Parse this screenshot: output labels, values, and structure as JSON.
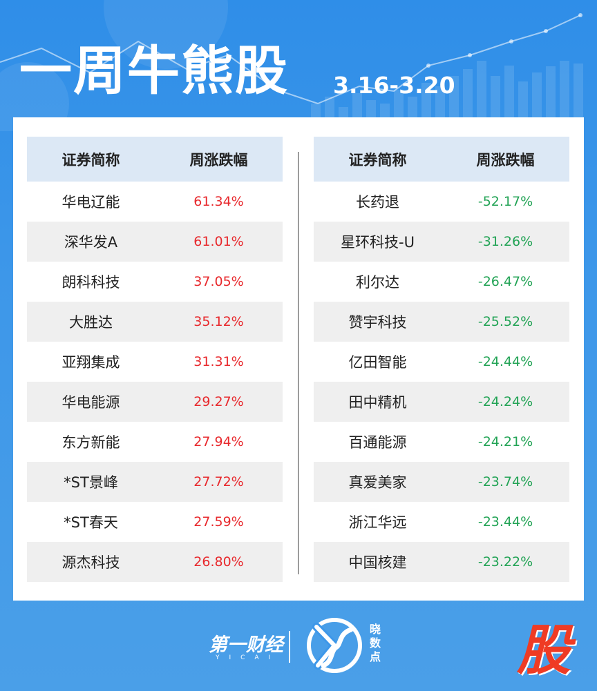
{
  "header": {
    "title": "一周牛熊股",
    "date_range": "3.16-3.20"
  },
  "gainers": {
    "col_name": "证券简称",
    "col_change": "周涨跌幅",
    "rows": [
      {
        "name": "华电辽能",
        "change": "61.34%"
      },
      {
        "name": "深华发A",
        "change": "61.01%"
      },
      {
        "name": "朗科科技",
        "change": "37.05%"
      },
      {
        "name": "大胜达",
        "change": "35.12%"
      },
      {
        "name": "亚翔集成",
        "change": "31.31%"
      },
      {
        "name": "华电能源",
        "change": "29.27%"
      },
      {
        "name": "东方新能",
        "change": "27.94%"
      },
      {
        "name": "*ST景峰",
        "change": "27.72%"
      },
      {
        "name": "*ST春天",
        "change": "27.59%"
      },
      {
        "name": "源杰科技",
        "change": "26.80%"
      }
    ]
  },
  "losers": {
    "col_name": "证券简称",
    "col_change": "周涨跌幅",
    "rows": [
      {
        "name": "长药退",
        "change": "-52.17%"
      },
      {
        "name": "星环科技-U",
        "change": "-31.26%"
      },
      {
        "name": "利尔达",
        "change": "-26.47%"
      },
      {
        "name": "赞宇科技",
        "change": "-25.52%"
      },
      {
        "name": "亿田智能",
        "change": "-24.44%"
      },
      {
        "name": "田中精机",
        "change": "-24.24%"
      },
      {
        "name": "百通能源",
        "change": "-24.21%"
      },
      {
        "name": "真爱美家",
        "change": "-23.74%"
      },
      {
        "name": "浙江华远",
        "change": "-23.44%"
      },
      {
        "name": "中国核建",
        "change": "-23.22%"
      }
    ]
  },
  "footer": {
    "brand": "第一财经",
    "brand_sub": "YICAI",
    "column_name": "晓数点",
    "stamp": "股"
  },
  "colors": {
    "background": "#3d97e9",
    "header_row": "#dce8f5",
    "alt_row": "#efefef",
    "gain": "#e8292d",
    "loss": "#22a355",
    "stamp": "#ef3b24"
  }
}
